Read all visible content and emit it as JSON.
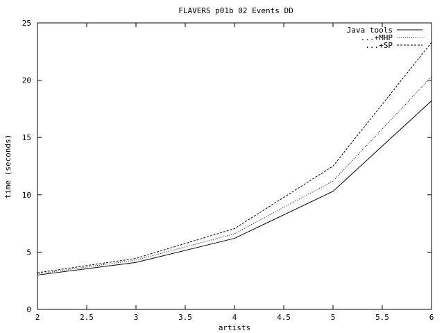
{
  "chart_data": {
    "type": "line",
    "title": "FLAVERS p01b 02 Events DD",
    "xlabel": "artists",
    "ylabel": "time (seconds)",
    "xlim": [
      2,
      6
    ],
    "ylim": [
      0,
      25
    ],
    "xticks": [
      2,
      2.5,
      3,
      3.5,
      4,
      4.5,
      5,
      5.5,
      6
    ],
    "xtick_labels": [
      "2",
      "2.5",
      "3",
      "3.5",
      "4",
      "4.5",
      "5",
      "5.5",
      "6"
    ],
    "yticks": [
      0,
      5,
      10,
      15,
      20,
      25
    ],
    "ytick_labels": [
      "0",
      "5",
      "10",
      "15",
      "20",
      "25"
    ],
    "grid": false,
    "legend_position": "top-right",
    "x": [
      2,
      3,
      4,
      5,
      6
    ],
    "series": [
      {
        "name": "Java tools",
        "values": [
          3.0,
          4.1,
          6.2,
          10.3,
          18.2
        ],
        "dash": "solid"
      },
      {
        "name": "...+MHP",
        "values": [
          3.1,
          4.3,
          6.6,
          11.2,
          20.3
        ],
        "dash": "dotted"
      },
      {
        "name": "...+SP",
        "values": [
          3.2,
          4.45,
          7.05,
          12.5,
          23.3
        ],
        "dash": "dashed"
      }
    ]
  }
}
